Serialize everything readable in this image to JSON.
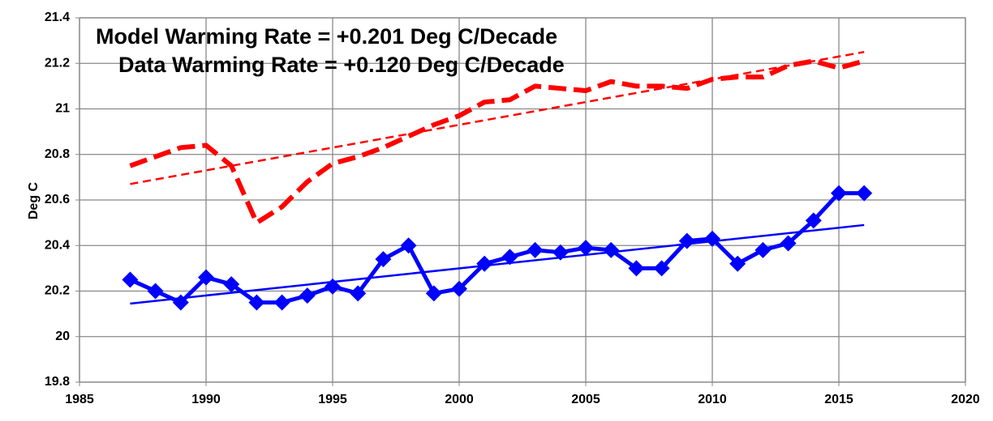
{
  "chart_data": {
    "type": "line",
    "ylabel": "Deg C",
    "annotations": [
      {
        "text": "Model Warming Rate = +0.201 Deg C/Decade",
        "color": "#ff0000"
      },
      {
        "text": "Data Warming Rate = +0.120 Deg C/Decade",
        "color": "#0000ff"
      }
    ],
    "x": [
      1987,
      1988,
      1989,
      1990,
      1991,
      1992,
      1993,
      1994,
      1995,
      1996,
      1997,
      1998,
      1999,
      2000,
      2001,
      2002,
      2003,
      2004,
      2005,
      2006,
      2007,
      2008,
      2009,
      2010,
      2011,
      2012,
      2013,
      2014,
      2015,
      2016
    ],
    "series": [
      {
        "color": "#ff0000",
        "line_style": "dashed",
        "line_width": 6,
        "marker": "none",
        "values": [
          20.75,
          20.79,
          20.83,
          20.84,
          20.75,
          20.5,
          20.57,
          20.68,
          20.76,
          20.79,
          20.83,
          20.88,
          20.93,
          20.97,
          21.03,
          21.04,
          21.1,
          21.09,
          21.08,
          21.12,
          21.1,
          21.1,
          21.09,
          21.13,
          21.14,
          21.14,
          21.19,
          21.21,
          21.18,
          21.21
        ]
      },
      {
        "color": "#0000ff",
        "line_style": "solid",
        "line_width": 5,
        "marker": "diamond",
        "values": [
          20.25,
          20.2,
          20.15,
          20.26,
          20.23,
          20.15,
          20.15,
          20.18,
          20.22,
          20.19,
          20.34,
          20.4,
          20.19,
          20.21,
          20.32,
          20.35,
          20.38,
          20.37,
          20.39,
          20.38,
          20.3,
          20.3,
          20.42,
          20.43,
          20.32,
          20.38,
          20.41,
          20.51,
          20.63,
          20.63
        ]
      },
      {
        "color": "#ff0000",
        "line_style": "dashed",
        "line_width": 2.5,
        "marker": "none",
        "x": [
          1987,
          2016
        ],
        "values": [
          20.67,
          21.25
        ]
      },
      {
        "color": "#0000ff",
        "line_style": "solid",
        "line_width": 2.5,
        "marker": "none",
        "x": [
          1987,
          2016
        ],
        "values": [
          20.145,
          20.49
        ]
      }
    ],
    "xlim": [
      1985,
      2020
    ],
    "xticks": [
      1985,
      1990,
      1995,
      2000,
      2005,
      2010,
      2015,
      2020
    ],
    "ylim": [
      19.8,
      21.4
    ],
    "yticks": [
      19.8,
      20,
      20.2,
      20.4,
      20.6,
      20.8,
      21,
      21.2,
      21.4
    ],
    "grid": true
  }
}
